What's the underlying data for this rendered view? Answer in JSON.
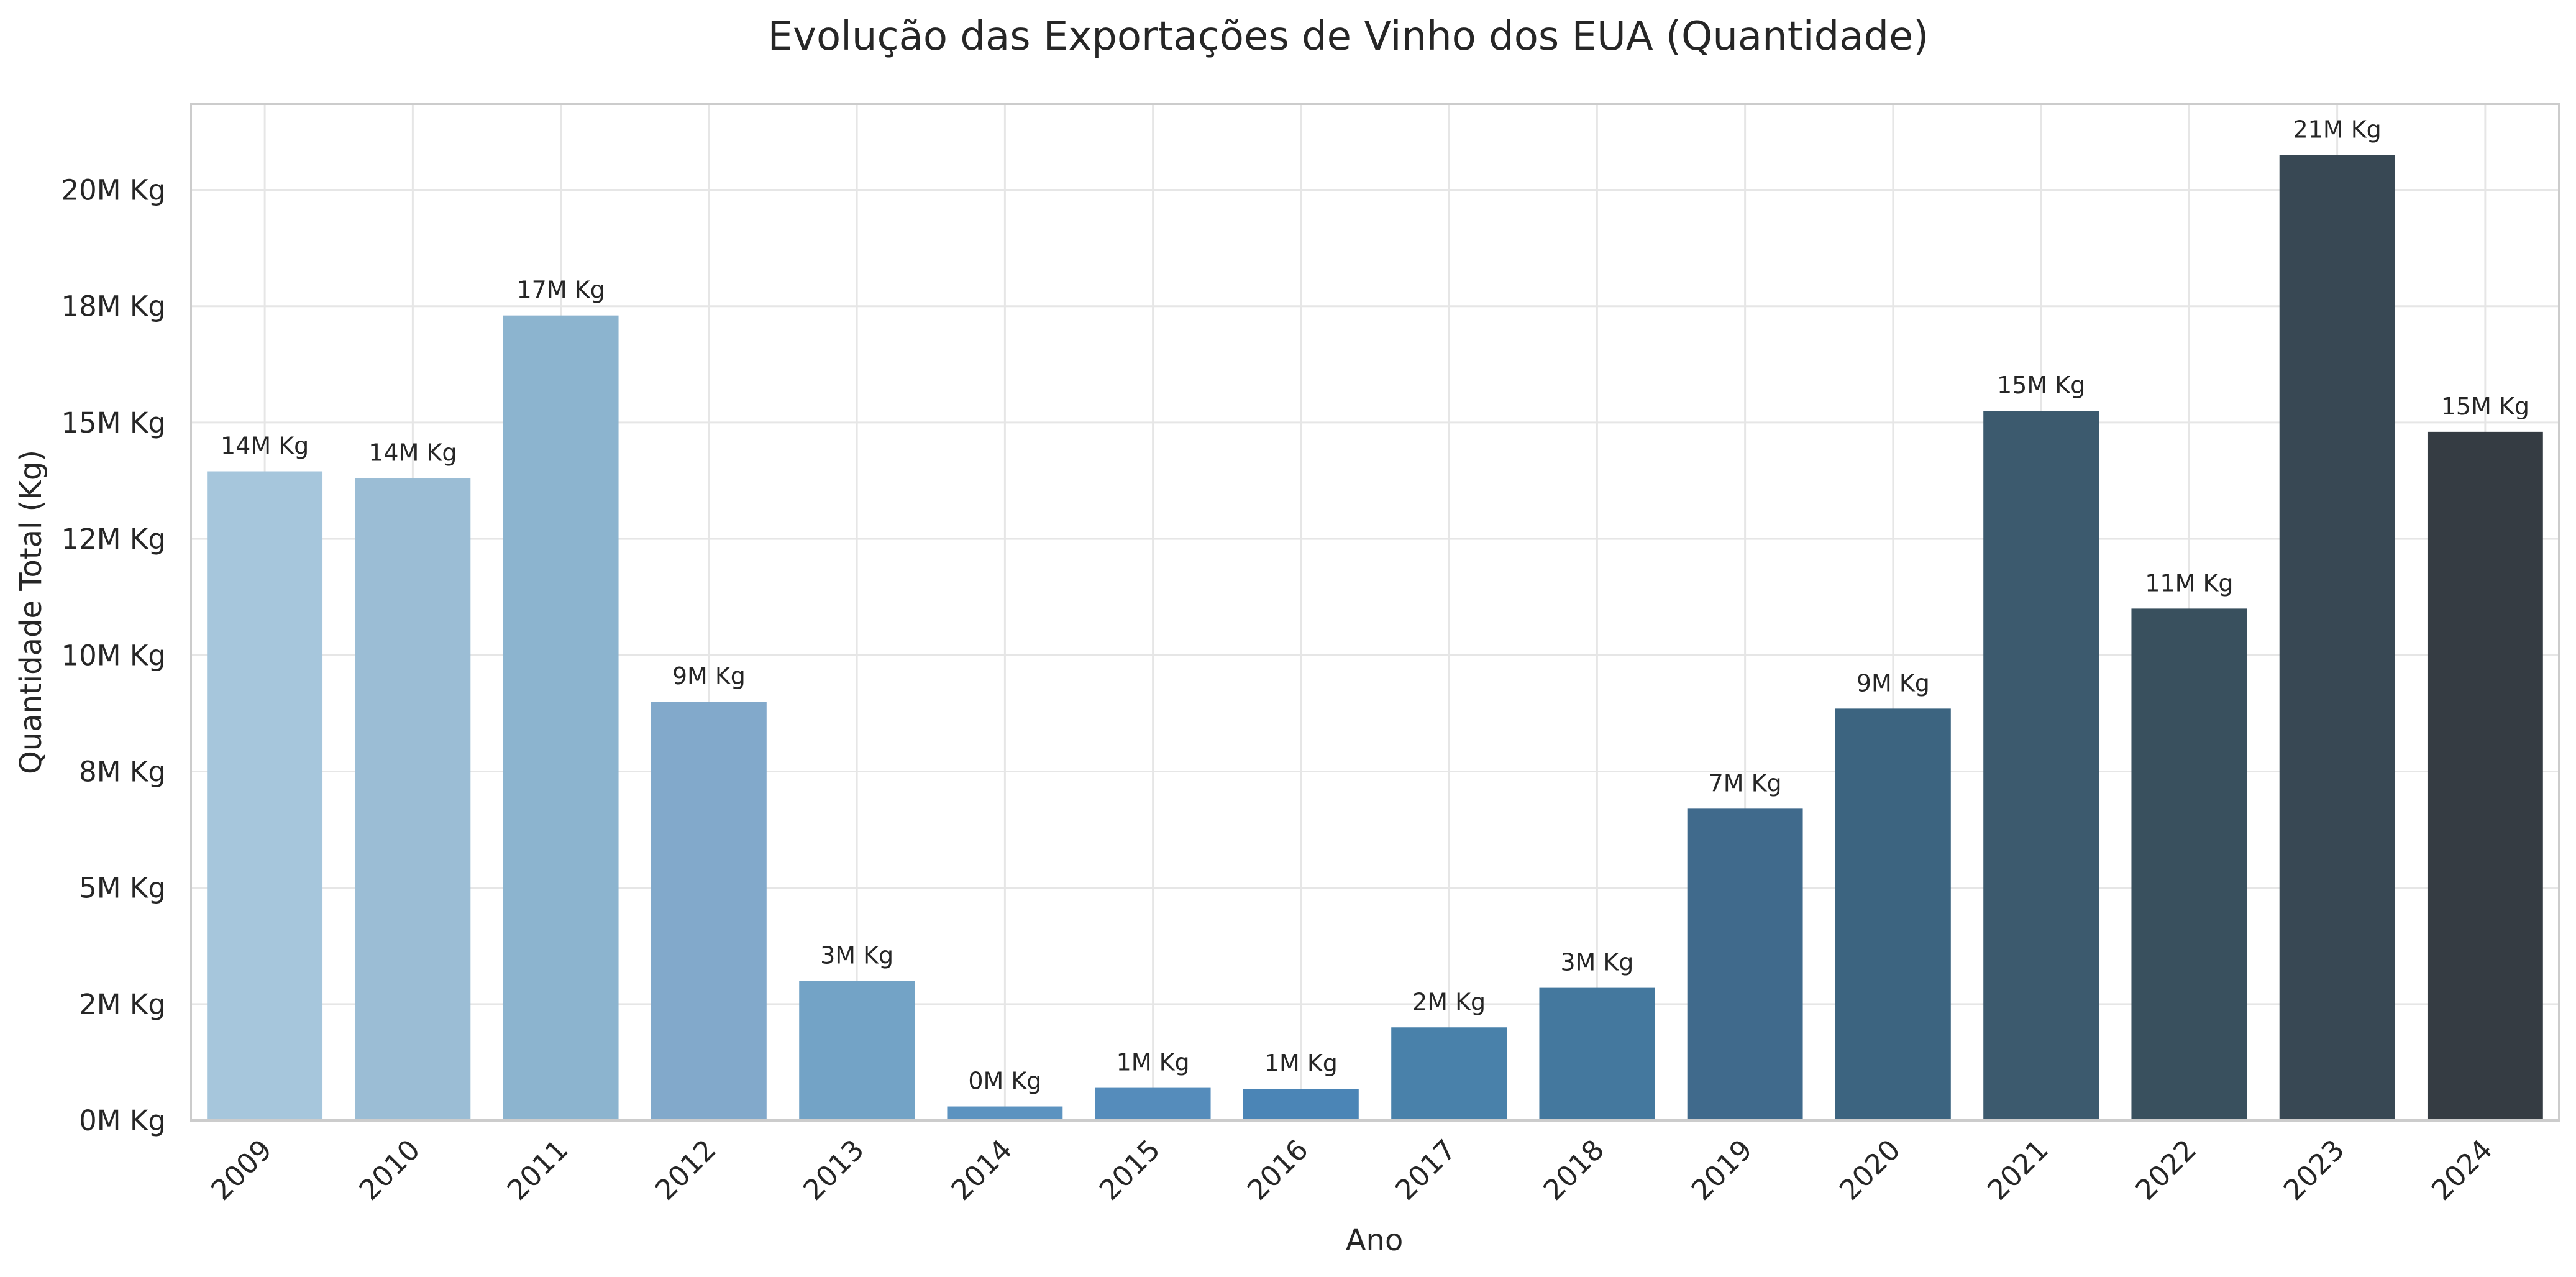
{
  "chart_data": {
    "type": "bar",
    "title": "Evolução das Exportações de Vinho dos EUA (Quantidade)",
    "xlabel": "Ano",
    "ylabel": "Quantidade Total (Kg)",
    "categories": [
      "2009",
      "2010",
      "2011",
      "2012",
      "2013",
      "2014",
      "2015",
      "2016",
      "2017",
      "2018",
      "2019",
      "2020",
      "2021",
      "2022",
      "2023",
      "2024"
    ],
    "values": [
      13950000,
      13800000,
      17300000,
      9000000,
      3000000,
      300000,
      700000,
      680000,
      2000000,
      2850000,
      6700000,
      8850000,
      15250000,
      11000000,
      20750000,
      14800000
    ],
    "value_labels": [
      "14M Kg",
      "14M Kg",
      "17M Kg",
      "9M Kg",
      "3M Kg",
      "0M Kg",
      "1M Kg",
      "1M Kg",
      "2M Kg",
      "3M Kg",
      "7M Kg",
      "9M Kg",
      "15M Kg",
      "11M Kg",
      "21M Kg",
      "15M Kg"
    ],
    "ylim": [
      0,
      21850000
    ],
    "yticks": [
      0,
      2500000,
      5000000,
      7500000,
      10000000,
      12500000,
      15000000,
      17500000,
      20000000
    ],
    "ytick_labels": [
      "0M Kg",
      "2M Kg",
      "5M Kg",
      "8M Kg",
      "10M Kg",
      "12M Kg",
      "15M Kg",
      "18M Kg",
      "20M Kg"
    ],
    "grid": true,
    "legend": "none",
    "colors": [
      "#a6c6dc",
      "#9bbdd5",
      "#8cb4cf",
      "#82a9cb",
      "#73a3c6",
      "#5c93c0",
      "#558cbb",
      "#4b85b6",
      "#4981aa",
      "#44789e",
      "#406a8c",
      "#3c6480",
      "#3c5a6e",
      "#39505e",
      "#384854",
      "#353c43"
    ]
  }
}
